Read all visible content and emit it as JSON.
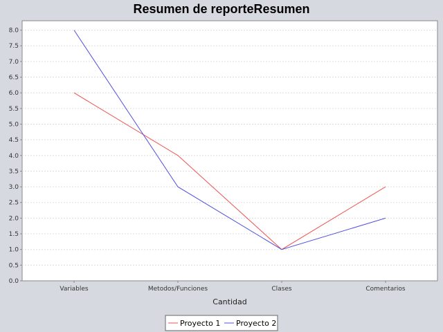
{
  "chart_data": {
    "type": "line",
    "title": "Resumen de reporteResumen",
    "xlabel": "Cantidad",
    "ylabel": "",
    "categories": [
      "Variables",
      "Metodos/Funciones",
      "Clases",
      "Comentarios"
    ],
    "ylim": [
      0,
      8.3
    ],
    "yticks": [
      "0.0",
      "0.5",
      "1.0",
      "1.5",
      "2.0",
      "2.5",
      "3.0",
      "3.5",
      "4.0",
      "4.5",
      "5.0",
      "5.5",
      "6.0",
      "6.5",
      "7.0",
      "7.5",
      "8.0"
    ],
    "grid": true,
    "legend_position": "bottom-center",
    "series": [
      {
        "name": "Proyecto 1",
        "color": "#f05050",
        "values": [
          6,
          4,
          1,
          3
        ]
      },
      {
        "name": "Proyecto 2",
        "color": "#5050e0",
        "values": [
          8,
          3,
          1,
          2
        ]
      }
    ]
  },
  "colors": {
    "background": "#d6d9df",
    "plot_background": "#ffffff",
    "grid": "#dddddd",
    "axis": "#888888"
  }
}
